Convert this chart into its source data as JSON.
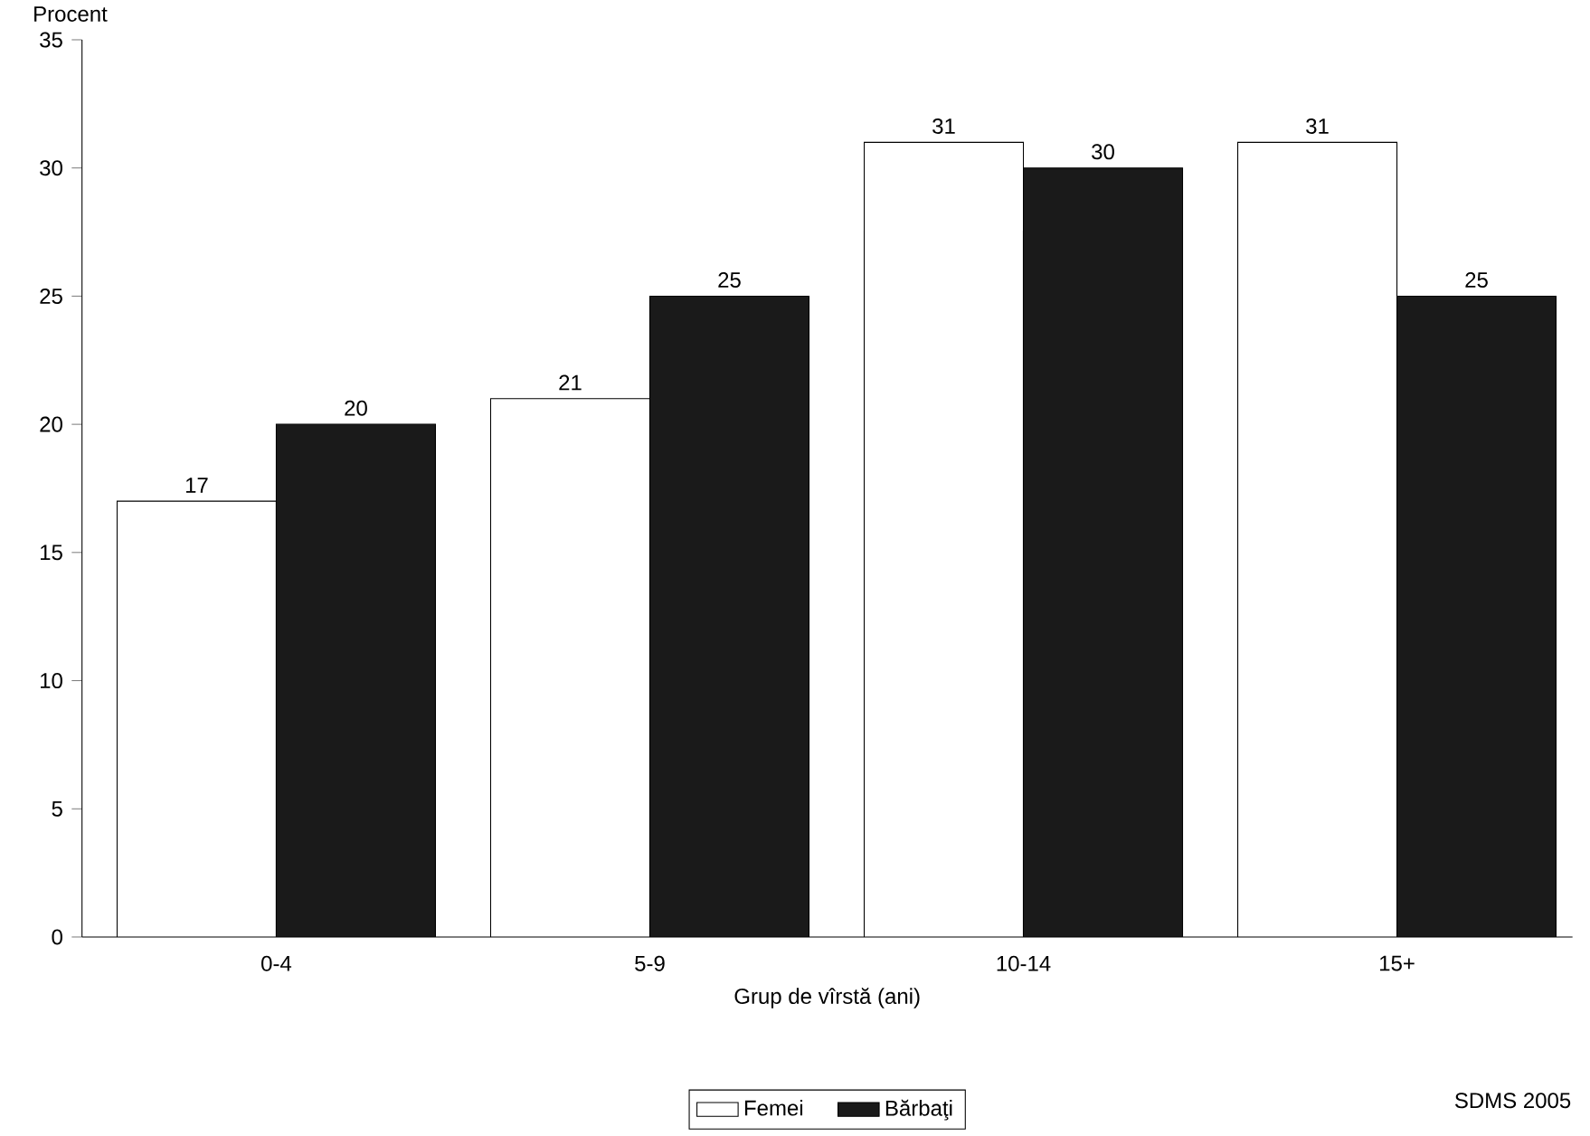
{
  "chart_data": {
    "type": "bar",
    "ylabel": "Procent",
    "xlabel": "Grup de vîrstă (ani)",
    "categories": [
      "0-4",
      "5-9",
      "10-14",
      "15+"
    ],
    "series": [
      {
        "name": "Femei",
        "color": "#ffffff",
        "values": [
          17,
          21,
          31,
          31
        ]
      },
      {
        "name": "Bărbaţi",
        "color": "#1a1a1a",
        "values": [
          20,
          25,
          30,
          25
        ]
      }
    ],
    "ylim": [
      0,
      35
    ],
    "yticks": [
      0,
      5,
      10,
      15,
      20,
      25,
      30,
      35
    ],
    "data_labels": true,
    "legend": "bottom",
    "grid": false,
    "annotations": [
      "SDMS 2005"
    ]
  }
}
